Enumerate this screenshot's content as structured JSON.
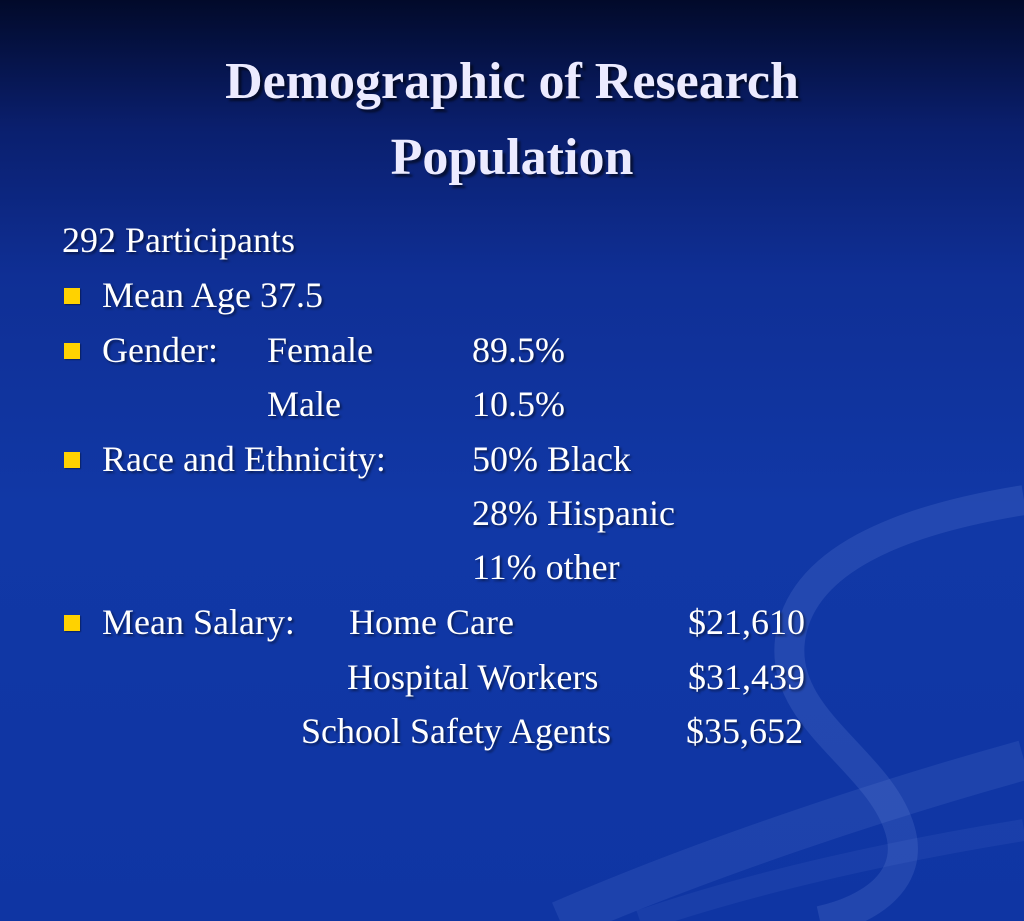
{
  "slide": {
    "title_line1": "Demographic of Research",
    "title_line2": "Population",
    "participants": "292 Participants",
    "bullets": {
      "age": "Mean Age 37.5",
      "gender_label": "Gender:",
      "race_label": "Race and Ethnicity:",
      "salary_label": "Mean Salary:"
    },
    "gender": [
      {
        "category": "Female",
        "value": "89.5%"
      },
      {
        "category": "Male",
        "value": "10.5%"
      }
    ],
    "race": [
      "50% Black",
      "28% Hispanic",
      "11% other"
    ],
    "salary": [
      {
        "group": "Home Care",
        "amount": "$21,610"
      },
      {
        "group": "Hospital Workers",
        "amount": "$31,439"
      },
      {
        "group": "School Safety Agents",
        "amount": "$35,652"
      }
    ]
  },
  "colors": {
    "bullet": "#ffd200",
    "title": "#ecebff",
    "background": "#1138a6"
  }
}
